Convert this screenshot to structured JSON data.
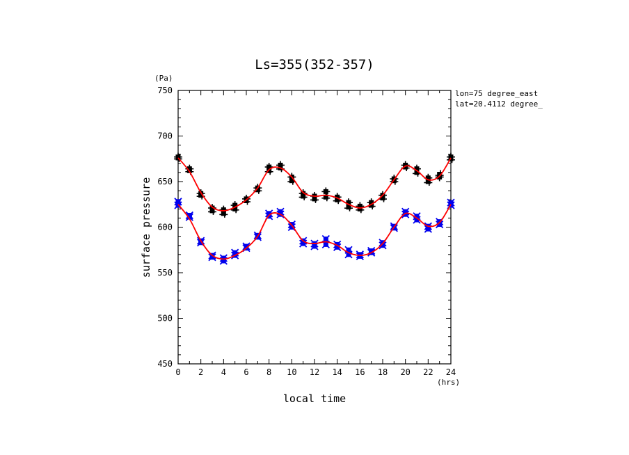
{
  "chart_data": {
    "type": "scatter",
    "title": "Ls=355(352-357)",
    "xlabel": "local time",
    "ylabel": "surface pressure",
    "xunit": "(hrs)",
    "yunit": "(Pa)",
    "annotations": [
      "lon=75 degree_east",
      "lat=20.4112 degree_"
    ],
    "xlim": [
      0,
      24
    ],
    "ylim": [
      450,
      750
    ],
    "xticks": [
      0,
      2,
      4,
      6,
      8,
      10,
      12,
      14,
      16,
      18,
      20,
      22,
      24
    ],
    "yticks": [
      450,
      500,
      550,
      600,
      650,
      700,
      750
    ],
    "grid": false,
    "series": [
      {
        "marker": "square-and-plus",
        "color": "#000000",
        "points": [
          [
            0,
            677
          ],
          [
            0,
            676
          ],
          [
            1,
            664
          ],
          [
            1,
            662
          ],
          [
            2,
            637
          ],
          [
            2,
            635
          ],
          [
            3,
            621
          ],
          [
            3,
            618
          ],
          [
            4,
            619
          ],
          [
            4,
            615
          ],
          [
            5,
            624
          ],
          [
            5,
            620
          ],
          [
            6,
            631
          ],
          [
            6,
            629
          ],
          [
            7,
            643
          ],
          [
            7,
            641
          ],
          [
            8,
            666
          ],
          [
            8,
            662
          ],
          [
            9,
            668
          ],
          [
            9,
            665
          ],
          [
            10,
            655
          ],
          [
            10,
            651
          ],
          [
            11,
            637
          ],
          [
            11,
            634
          ],
          [
            12,
            634
          ],
          [
            12,
            631
          ],
          [
            13,
            639
          ],
          [
            13,
            633
          ],
          [
            14,
            633
          ],
          [
            14,
            630
          ],
          [
            15,
            627
          ],
          [
            15,
            622
          ],
          [
            16,
            623
          ],
          [
            16,
            620
          ],
          [
            17,
            627
          ],
          [
            17,
            624
          ],
          [
            18,
            635
          ],
          [
            18,
            632
          ],
          [
            19,
            653
          ],
          [
            19,
            651
          ],
          [
            20,
            668
          ],
          [
            20,
            666
          ],
          [
            21,
            664
          ],
          [
            21,
            660
          ],
          [
            22,
            654
          ],
          [
            22,
            650
          ],
          [
            23,
            655
          ],
          [
            23,
            658
          ],
          [
            24,
            677
          ],
          [
            24,
            675
          ]
        ],
        "fit": [
          [
            0,
            676
          ],
          [
            1,
            661
          ],
          [
            2,
            638
          ],
          [
            3,
            622
          ],
          [
            4,
            618
          ],
          [
            5,
            622
          ],
          [
            6,
            630
          ],
          [
            7,
            643
          ],
          [
            8,
            663
          ],
          [
            9,
            665
          ],
          [
            10,
            655
          ],
          [
            11,
            638
          ],
          [
            12,
            634
          ],
          [
            13,
            635
          ],
          [
            14,
            632
          ],
          [
            15,
            625
          ],
          [
            16,
            621
          ],
          [
            17,
            625
          ],
          [
            18,
            635
          ],
          [
            19,
            652
          ],
          [
            20,
            667
          ],
          [
            21,
            662
          ],
          [
            22,
            652
          ],
          [
            23,
            656
          ],
          [
            24,
            676
          ]
        ]
      },
      {
        "marker": "square-and-x",
        "color": "#0000ee",
        "points": [
          [
            0,
            628
          ],
          [
            0,
            624
          ],
          [
            1,
            613
          ],
          [
            1,
            611
          ],
          [
            2,
            585
          ],
          [
            2,
            583
          ],
          [
            3,
            569
          ],
          [
            3,
            567
          ],
          [
            4,
            566
          ],
          [
            4,
            563
          ],
          [
            5,
            572
          ],
          [
            5,
            569
          ],
          [
            6,
            579
          ],
          [
            6,
            577
          ],
          [
            7,
            591
          ],
          [
            7,
            589
          ],
          [
            8,
            615
          ],
          [
            8,
            612
          ],
          [
            9,
            617
          ],
          [
            9,
            614
          ],
          [
            10,
            603
          ],
          [
            10,
            600
          ],
          [
            11,
            585
          ],
          [
            11,
            582
          ],
          [
            12,
            582
          ],
          [
            12,
            579
          ],
          [
            13,
            587
          ],
          [
            13,
            581
          ],
          [
            14,
            581
          ],
          [
            14,
            578
          ],
          [
            15,
            575
          ],
          [
            15,
            570
          ],
          [
            16,
            570
          ],
          [
            16,
            568
          ],
          [
            17,
            574
          ],
          [
            17,
            572
          ],
          [
            18,
            583
          ],
          [
            18,
            580
          ],
          [
            19,
            601
          ],
          [
            19,
            599
          ],
          [
            20,
            617
          ],
          [
            20,
            614
          ],
          [
            21,
            612
          ],
          [
            21,
            608
          ],
          [
            22,
            601
          ],
          [
            22,
            598
          ],
          [
            23,
            606
          ],
          [
            23,
            603
          ],
          [
            24,
            627
          ],
          [
            24,
            624
          ]
        ],
        "fit": [
          [
            0,
            625
          ],
          [
            1,
            609
          ],
          [
            2,
            585
          ],
          [
            3,
            569
          ],
          [
            4,
            565
          ],
          [
            5,
            569
          ],
          [
            6,
            577
          ],
          [
            7,
            590
          ],
          [
            8,
            613
          ],
          [
            9,
            614
          ],
          [
            10,
            602
          ],
          [
            11,
            585
          ],
          [
            12,
            582
          ],
          [
            13,
            584
          ],
          [
            14,
            580
          ],
          [
            15,
            572
          ],
          [
            16,
            569
          ],
          [
            17,
            572
          ],
          [
            18,
            582
          ],
          [
            19,
            600
          ],
          [
            20,
            615
          ],
          [
            21,
            610
          ],
          [
            22,
            601
          ],
          [
            23,
            605
          ],
          [
            24,
            625
          ]
        ]
      }
    ],
    "fit_color": "#ff0000"
  }
}
